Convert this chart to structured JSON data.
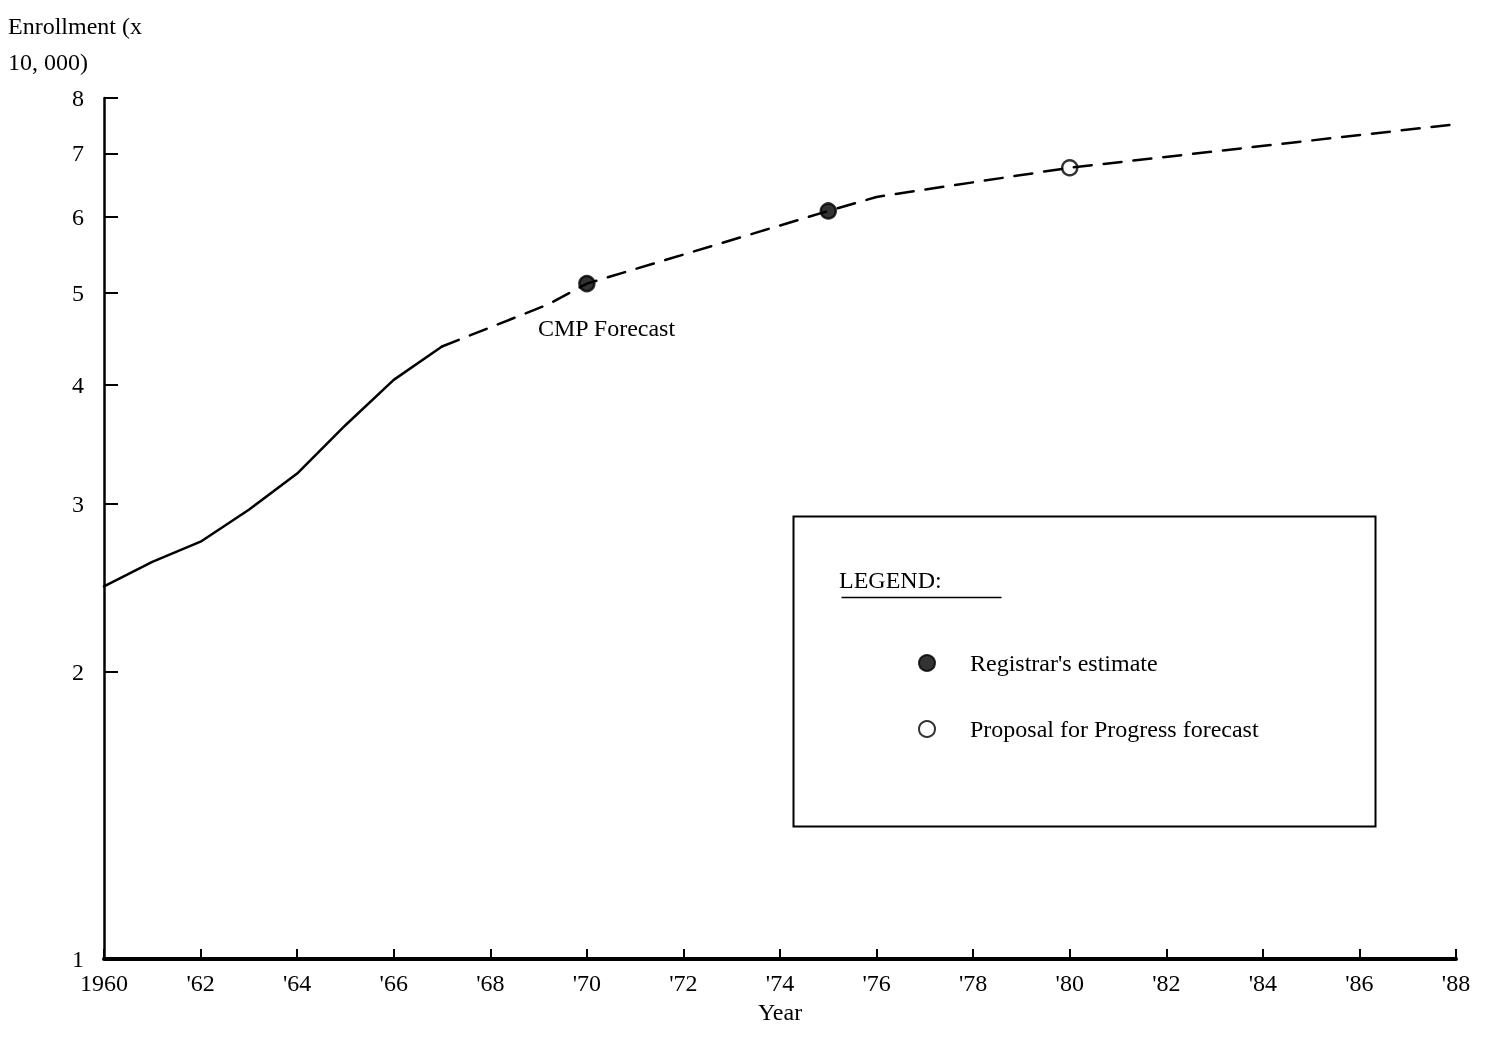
{
  "chart_data": {
    "type": "line",
    "xlabel": "Year",
    "ylabel": "Enrollment (x 10, 000)",
    "log": "y",
    "grid": false,
    "legend": "right",
    "legend_title": "LEGEND:",
    "xlim": [
      1960,
      1988
    ],
    "xticks": [
      1960,
      {
        "value": 1962,
        "label": "'62"
      },
      {
        "value": 1964,
        "label": "'64"
      },
      {
        "value": 1966,
        "label": "'66"
      },
      {
        "value": 1968,
        "label": "'68"
      },
      {
        "value": 1970,
        "label": "'70"
      },
      {
        "value": 1972,
        "label": "'72"
      },
      {
        "value": 1974,
        "label": "'74"
      },
      {
        "value": 1976,
        "label": "'76"
      },
      {
        "value": 1978,
        "label": "'78"
      },
      {
        "value": 1980,
        "label": "'80"
      },
      {
        "value": 1982,
        "label": "'82"
      },
      {
        "value": 1984,
        "label": "'84"
      },
      {
        "value": 1986,
        "label": "'86"
      },
      {
        "value": 1988,
        "label": "'88"
      }
    ],
    "ylim": [
      1,
      8
    ],
    "yticks": [
      1,
      2,
      3,
      4,
      5,
      6,
      7,
      8
    ],
    "series": [
      {
        "color": "#000000",
        "line_style": "solid",
        "marker": "none",
        "x": [
          1960,
          1961,
          1962,
          1963,
          1964,
          1965,
          1966,
          1967
        ],
        "values": [
          2.46,
          2.61,
          2.74,
          2.96,
          3.23,
          3.63,
          4.05,
          4.39
        ]
      },
      {
        "color": "#000000",
        "line_style": "dashed",
        "marker": "none",
        "x": [
          1967,
          1969.2,
          1970,
          1975,
          1976,
          1980,
          1988
        ],
        "values": [
          4.39,
          4.86,
          5.11,
          6.09,
          6.3,
          6.76,
          7.51
        ]
      },
      {
        "type": "scatter",
        "name": "Registrar's estimate",
        "color": "#000000",
        "marker": "circle",
        "x": [
          1970,
          1975
        ],
        "values": [
          5.11,
          6.09
        ]
      },
      {
        "type": "scatter",
        "name": "Proposal for Progress forecast",
        "color": "#ffffff",
        "marker": "circle",
        "x": [
          1980
        ],
        "values": [
          6.76
        ]
      }
    ],
    "annotations": [
      "CMP Forecast"
    ]
  }
}
